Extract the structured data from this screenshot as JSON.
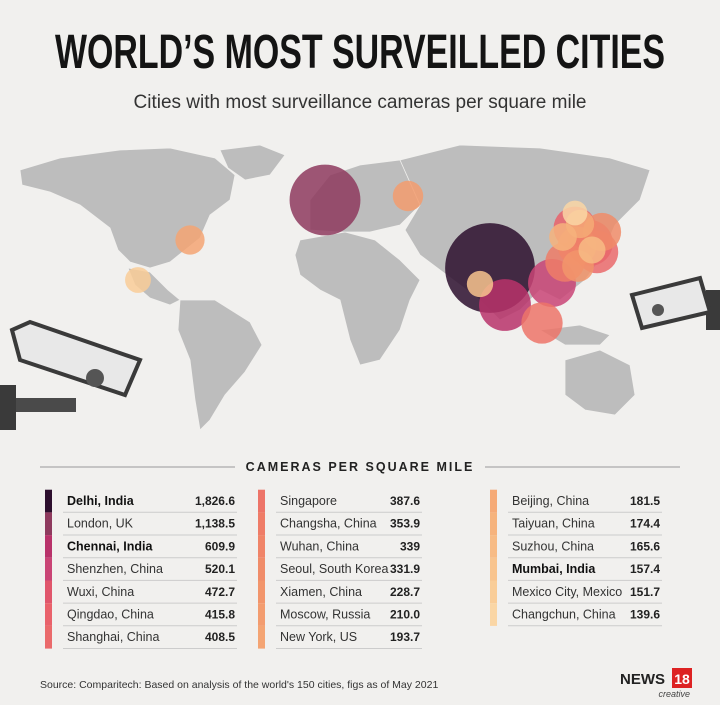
{
  "header": {
    "title": "WORLD’S MOST SURVEILLED CITIES",
    "subtitle": "Cities with most surveillance cameras per square mile"
  },
  "table": {
    "title": "CAMERAS PER SQUARE MILE",
    "rows": [
      {
        "city": "Delhi, India",
        "value": 1826.6,
        "value_label": "1,826.6",
        "color": "#2d0f2e",
        "bold": true
      },
      {
        "city": "London, UK",
        "value": 1138.5,
        "value_label": "1,138.5",
        "color": "#8e3a5e"
      },
      {
        "city": "Chennai, India",
        "value": 609.9,
        "color": "#b8326a",
        "bold": true
      },
      {
        "city": "Shenzhen, China",
        "value": 520.1,
        "color": "#c94475"
      },
      {
        "city": "Wuxi, China",
        "value": 472.7,
        "color": "#e0566b"
      },
      {
        "city": "Qingdao, China",
        "value": 415.8,
        "color": "#e9626b"
      },
      {
        "city": "Shanghai, China",
        "value": 408.5,
        "color": "#ea6a6b"
      },
      {
        "city": "Singapore",
        "value": 387.6,
        "color": "#ed7468"
      },
      {
        "city": "Changsha, China",
        "value": 353.9,
        "color": "#ef7c67"
      },
      {
        "city": "Wuhan, China",
        "value": 339,
        "color": "#f08468"
      },
      {
        "city": "Seoul, South Korea",
        "value": 331.9,
        "color": "#f08c69"
      },
      {
        "city": "Xiamen, China",
        "value": 228.7,
        "color": "#f2956b"
      },
      {
        "city": "Moscow, Russia",
        "value": 210.0,
        "value_label": "210.0",
        "color": "#f39c6f"
      },
      {
        "city": "New York, US",
        "value": 193.7,
        "color": "#f4a473"
      },
      {
        "city": "Beijing, China",
        "value": 181.5,
        "color": "#f5aa77"
      },
      {
        "city": "Taiyuan, China",
        "value": 174.4,
        "color": "#f6b37d"
      },
      {
        "city": "Suzhou, China",
        "value": 165.6,
        "color": "#f7bb85"
      },
      {
        "city": "Mumbai, India",
        "value": 157.4,
        "color": "#f8c48e",
        "bold": true
      },
      {
        "city": "Mexico City, Mexico",
        "value": 151.7,
        "color": "#f9cd98"
      },
      {
        "city": "Changchun, China",
        "value": 139.6,
        "color": "#fad6a5"
      }
    ]
  },
  "source": "Source: Comparitech: Based on analysis of the world's 150 cities, figs as of May 2021",
  "logo": {
    "brand": "NEWS",
    "number": "18",
    "sub": "creative"
  }
}
